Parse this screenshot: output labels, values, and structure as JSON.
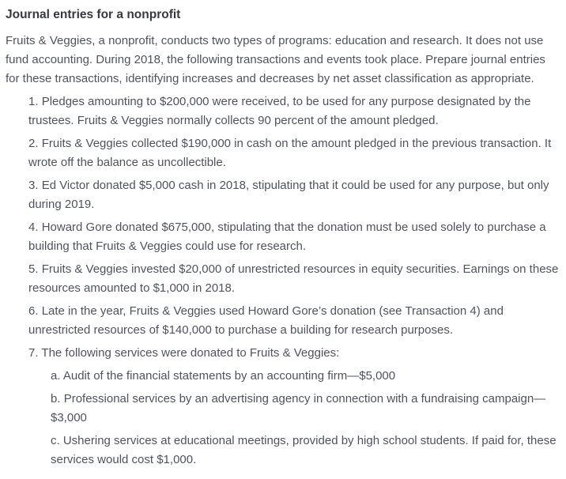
{
  "title": "Journal entries for a nonprofit",
  "intro": "Fruits & Veggies, a nonprofit, conducts two types of programs: education and research. It does not use fund accounting. During 2018, the following transactions and events took place. Prepare journal entries for these transactions, identifying increases and decreases by net asset classification as appropriate.",
  "items": [
    {
      "label": "1.",
      "text": "Pledges amounting to $200,000 were received, to be used for any purpose designated by the trustees. Fruits & Veggies normally collects 90 percent of the amount pledged."
    },
    {
      "label": "2.",
      "text": "Fruits & Veggies collected $190,000 in cash on the amount pledged in the previous transaction. It wrote off the balance as uncollectible."
    },
    {
      "label": "3.",
      "text": "Ed Victor donated $5,000 cash in 2018, stipulating that it could be used for any purpose, but only during 2019."
    },
    {
      "label": "4.",
      "text": "Howard Gore donated $675,000, stipulating that the donation must be used solely to purchase a building that Fruits & Veggies could use for research."
    },
    {
      "label": "5.",
      "text": "Fruits & Veggies invested $20,000 of unrestricted resources in equity securities. Earnings on these resources amounted to $1,000 in 2018."
    },
    {
      "label": "6.",
      "text": "Late in the year, Fruits & Veggies used Howard Gore’s donation (see Transaction 4) and unrestricted resources of $140,000 to purchase a building for research purposes."
    },
    {
      "label": "7.",
      "text": "The following services were donated to Fruits & Veggies:",
      "subitems": [
        {
          "label": "a.",
          "text": "Audit of the financial statements by an accounting firm—$5,000"
        },
        {
          "label": "b.",
          "text": "Professional services by an advertising agency in connection with a fundraising campaign—$3,000"
        },
        {
          "label": "c.",
          "text": "Ushering services at educational meetings, provided by high school students. If paid for, these services would cost $1,000."
        }
      ]
    }
  ]
}
